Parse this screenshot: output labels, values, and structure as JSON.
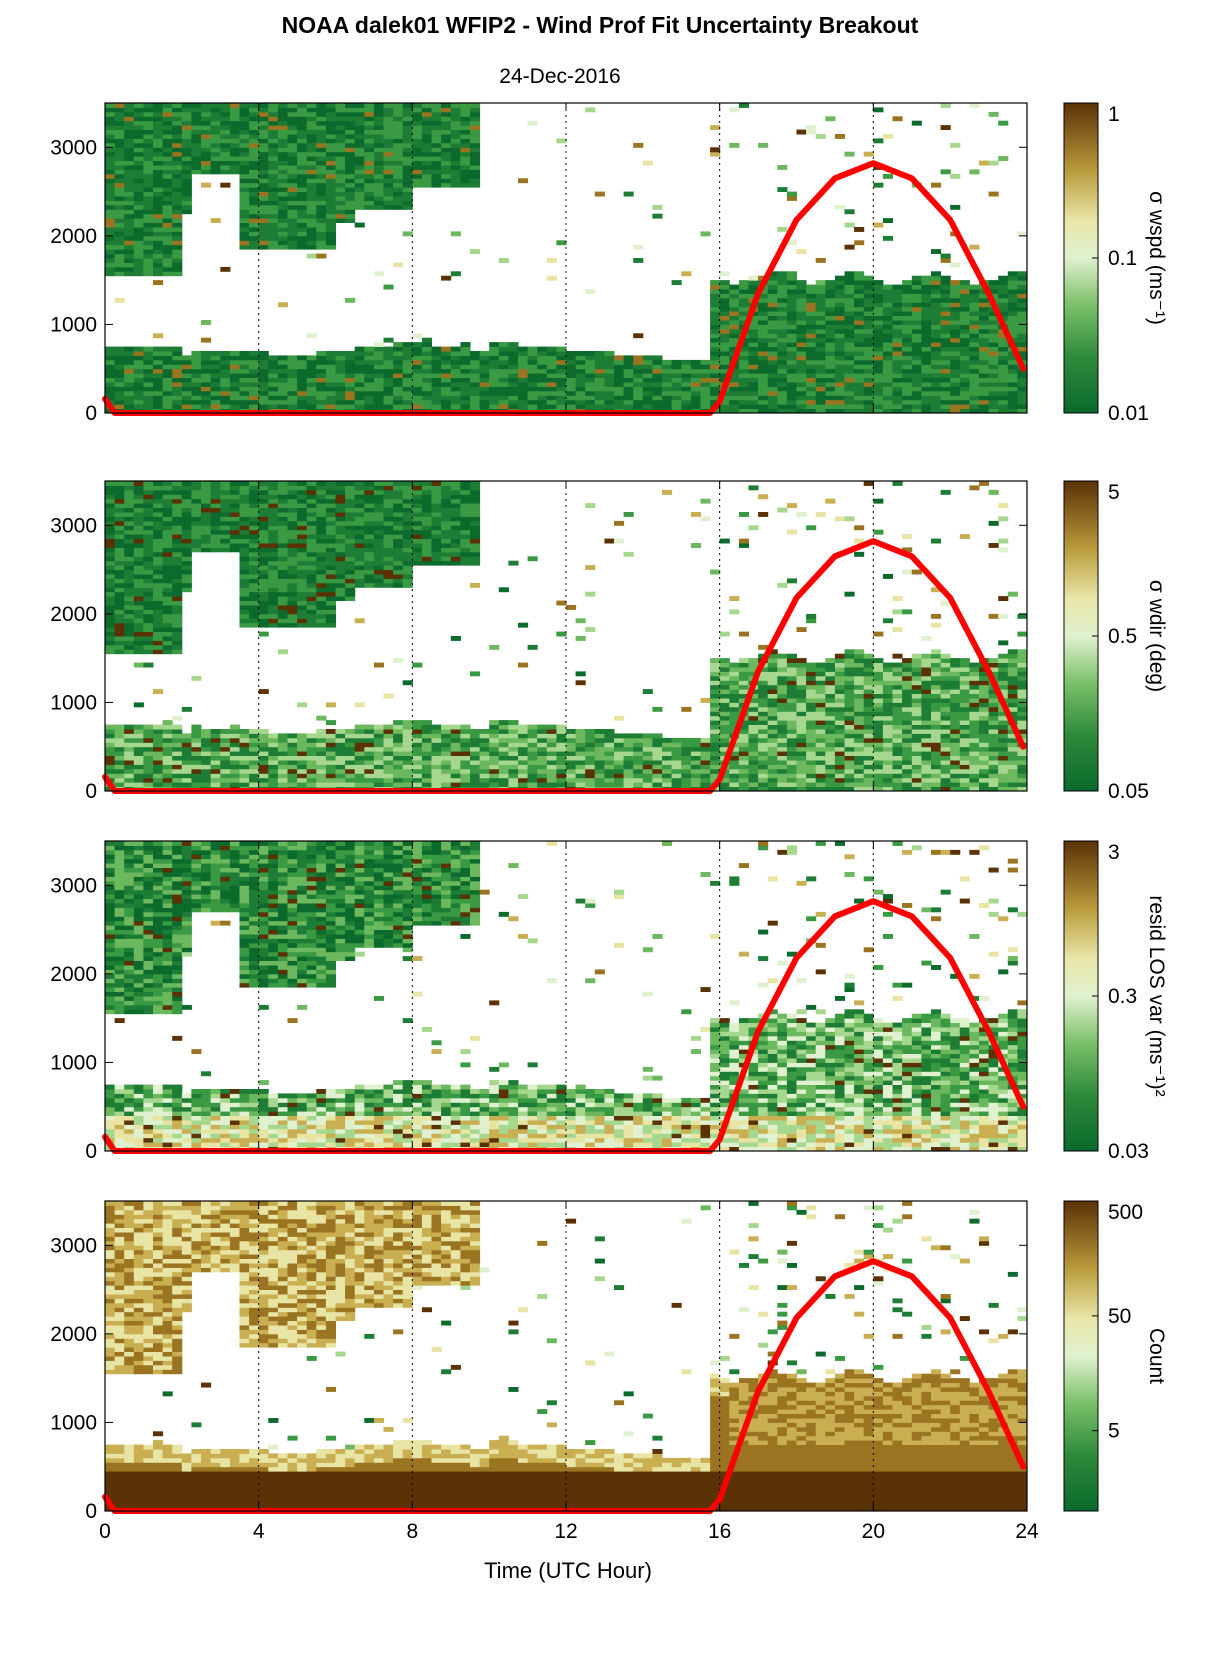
{
  "figure": {
    "title": "NOAA dalek01 WFIP2 - Wind Prof Fit Uncertainty Breakout",
    "subtitle": "24-Dec-2016",
    "xlabel": "Time (UTC Hour)"
  },
  "colors": {
    "dark_green": "#0f6a2e",
    "mid_green": "#4aa84a",
    "light_green": "#d9efc8",
    "tan": "#c8b35e",
    "dark_brown": "#5a3206",
    "solar_curve": "#ff0000"
  },
  "chart_data": [
    {
      "type": "heatmap",
      "panel": "sigma-wspd",
      "colorbar_label": "σ wspd (ms⁻¹)",
      "colorbar_scale": "log",
      "colorbar_ticks": [
        "1",
        "0.1",
        "0.01"
      ],
      "colorbar_range": [
        0.01,
        1
      ],
      "xlim": [
        0,
        24
      ],
      "ylim": [
        0,
        3500
      ],
      "xticks": [
        "0",
        "4",
        "8",
        "12",
        "16",
        "20",
        "24"
      ],
      "yticks": [
        "0",
        "1000",
        "2000",
        "3000"
      ],
      "grid": "vertical dotted at 4, 8, 12, 16, 20",
      "solar_curve": {
        "x": [
          0,
          0.25,
          15.75,
          16,
          17,
          18,
          19,
          20,
          21,
          22,
          23,
          23.9
        ],
        "y": [
          160,
          0,
          0,
          130,
          1350,
          2180,
          2650,
          2820,
          2650,
          2180,
          1350,
          500
        ]
      }
    },
    {
      "type": "heatmap",
      "panel": "sigma-wdir",
      "colorbar_label": "σ wdir (deg)",
      "colorbar_scale": "log",
      "colorbar_ticks": [
        "5",
        "0.5",
        "0.05"
      ],
      "colorbar_range": [
        0.05,
        5
      ],
      "xlim": [
        0,
        24
      ],
      "ylim": [
        0,
        3500
      ],
      "xticks": [
        "0",
        "4",
        "8",
        "12",
        "16",
        "20",
        "24"
      ],
      "yticks": [
        "0",
        "1000",
        "2000",
        "3000"
      ],
      "grid": "vertical dotted at 4, 8, 12, 16, 20",
      "solar_curve": {
        "x": [
          0,
          0.25,
          15.75,
          16,
          17,
          18,
          19,
          20,
          21,
          22,
          23,
          23.9
        ],
        "y": [
          160,
          0,
          0,
          130,
          1350,
          2180,
          2650,
          2820,
          2650,
          2180,
          1350,
          500
        ]
      }
    },
    {
      "type": "heatmap",
      "panel": "resid-los-var",
      "colorbar_label": "resid LOS var (ms⁻¹)²",
      "colorbar_scale": "log",
      "colorbar_ticks": [
        "3",
        "0.3",
        "0.03"
      ],
      "colorbar_range": [
        0.03,
        3
      ],
      "xlim": [
        0,
        24
      ],
      "ylim": [
        0,
        3500
      ],
      "xticks": [
        "0",
        "4",
        "8",
        "12",
        "16",
        "20",
        "24"
      ],
      "yticks": [
        "0",
        "1000",
        "2000",
        "3000"
      ],
      "grid": "vertical dotted at 4, 8, 12, 16, 20",
      "solar_curve": {
        "x": [
          0,
          0.25,
          15.75,
          16,
          17,
          18,
          19,
          20,
          21,
          22,
          23,
          23.9
        ],
        "y": [
          160,
          0,
          0,
          130,
          1350,
          2180,
          2650,
          2820,
          2650,
          2180,
          1350,
          500
        ]
      }
    },
    {
      "type": "heatmap",
      "panel": "count",
      "colorbar_label": "Count",
      "colorbar_scale": "log",
      "colorbar_ticks": [
        "500",
        "50",
        "5"
      ],
      "colorbar_range": [
        1,
        500
      ],
      "xlim": [
        0,
        24
      ],
      "ylim": [
        0,
        3500
      ],
      "xticks": [
        "0",
        "4",
        "8",
        "12",
        "16",
        "20",
        "24"
      ],
      "yticks": [
        "0",
        "1000",
        "2000",
        "3000"
      ],
      "grid": "vertical dotted at 4, 8, 12, 16, 20",
      "solar_curve": {
        "x": [
          0,
          0.25,
          15.75,
          16,
          17,
          18,
          19,
          20,
          21,
          22,
          23,
          23.9
        ],
        "y": [
          160,
          0,
          0,
          130,
          1350,
          2180,
          2650,
          2820,
          2650,
          2180,
          1350,
          500
        ]
      }
    }
  ]
}
